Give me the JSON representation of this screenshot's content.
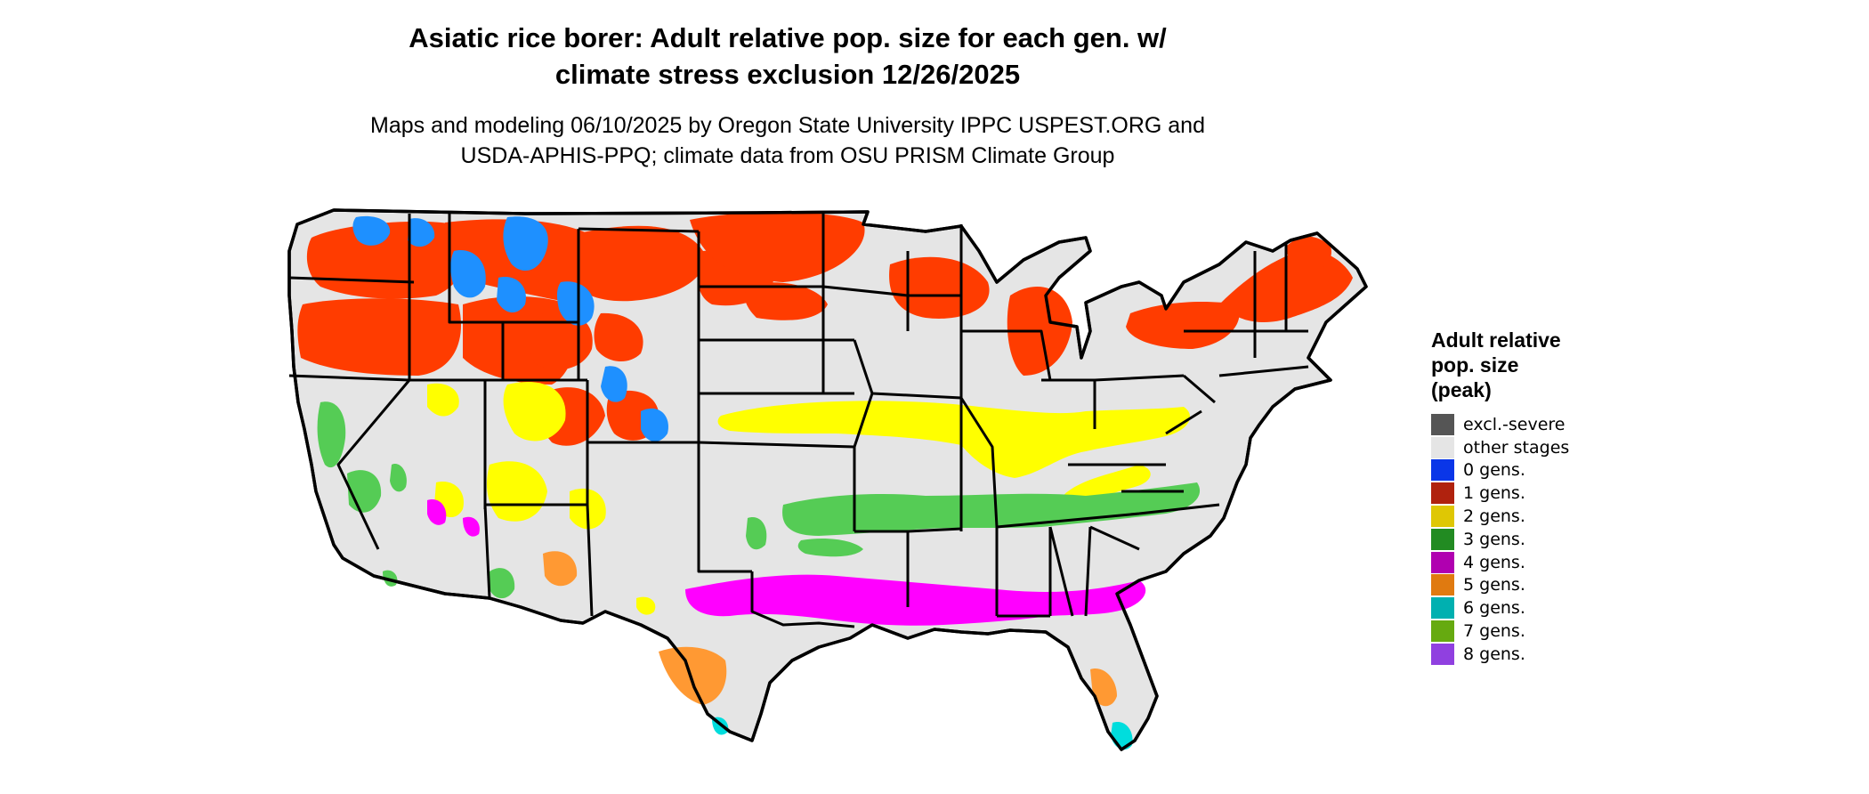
{
  "title": {
    "line1": "Asiatic rice borer: Adult relative pop. size for each gen. w/",
    "line2": "climate stress exclusion 12/26/2025"
  },
  "subtitle": {
    "line1": "Maps and modeling 06/10/2025 by Oregon State University IPPC USPEST.ORG and",
    "line2": "USDA-APHIS-PPQ; climate data from OSU PRISM Climate Group"
  },
  "legend": {
    "title_line1": "Adult relative",
    "title_line2": "pop. size",
    "title_line3": "(peak)",
    "items": [
      {
        "label": "excl.-severe",
        "color": "#555555"
      },
      {
        "label": "other stages",
        "color": "#e5e5e5"
      },
      {
        "label": "0 gens.",
        "color": "#0a36e8"
      },
      {
        "label": "1 gens.",
        "color": "#b0220e"
      },
      {
        "label": "2 gens.",
        "color": "#dfc704"
      },
      {
        "label": "3 gens.",
        "color": "#228b22"
      },
      {
        "label": "4 gens.",
        "color": "#b000b0"
      },
      {
        "label": "5 gens.",
        "color": "#e07a10"
      },
      {
        "label": "6 gens.",
        "color": "#00b0b0"
      },
      {
        "label": "7 gens.",
        "color": "#66aa10"
      },
      {
        "label": "8 gens.",
        "color": "#9040e0"
      }
    ]
  },
  "map_colors": {
    "land": "#e5e5e5",
    "border": "#000000",
    "gen0": "#1e90ff",
    "gen1": "#ff3c00",
    "gen2": "#ffff00",
    "gen3": "#55cc55",
    "gen4": "#ff00ff",
    "gen5": "#ff9933",
    "gen6": "#00dddd"
  }
}
